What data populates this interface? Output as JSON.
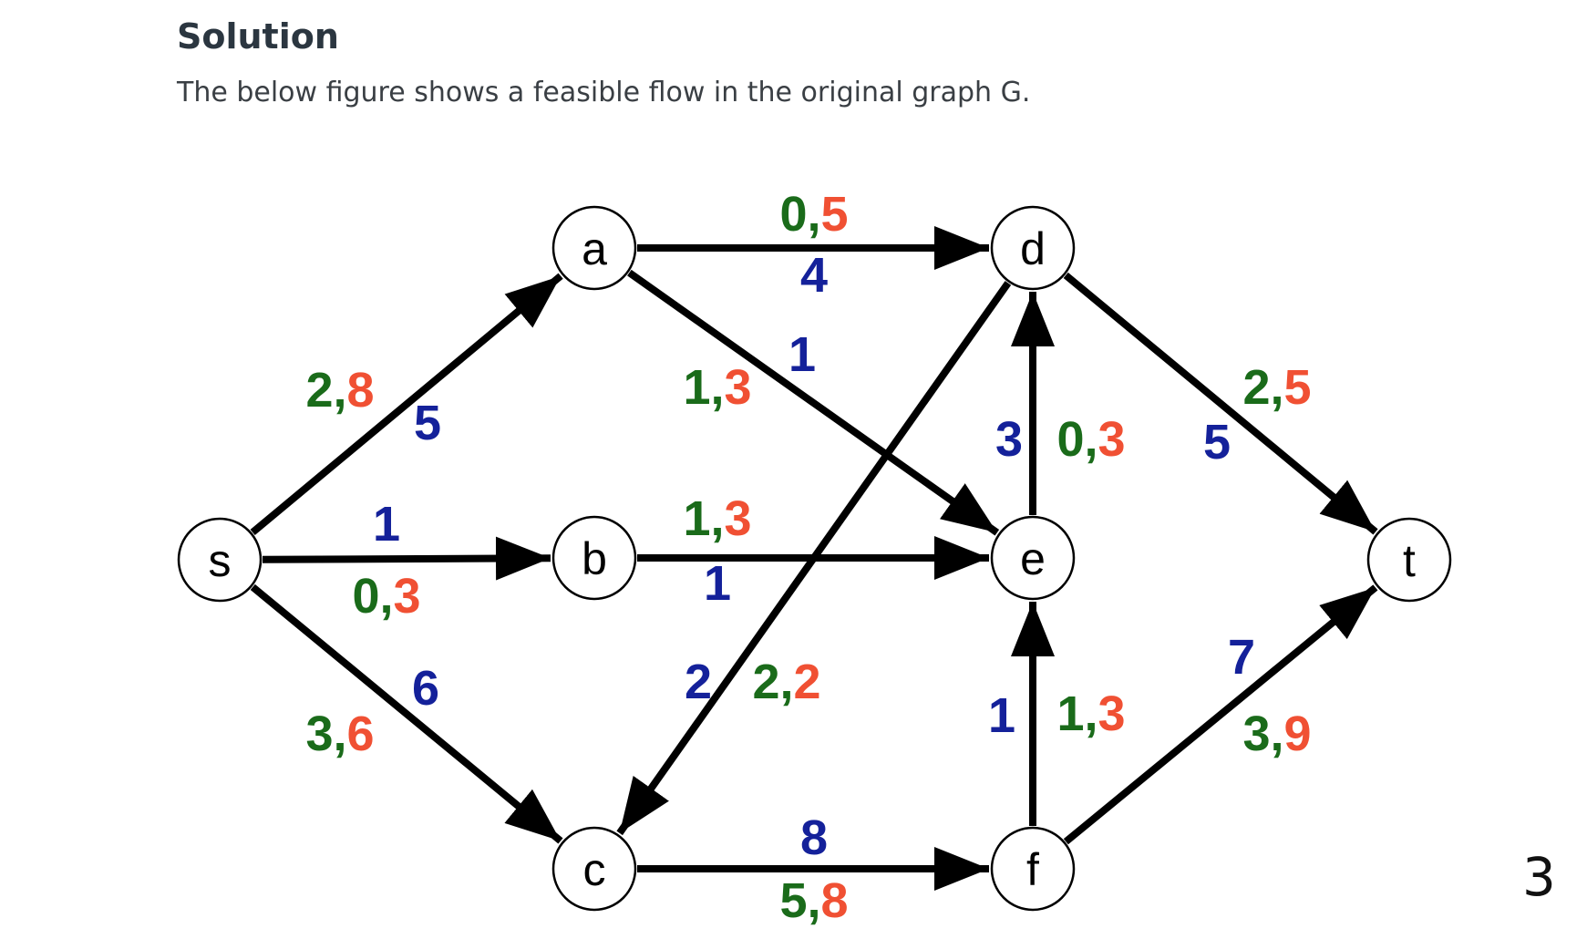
{
  "header": {
    "title": "Solution",
    "description": "The below figure shows a feasible flow in the original graph G."
  },
  "page_number": "3",
  "colors": {
    "flow": "#1a6b1a",
    "capacity": "#f05033",
    "residual": "#14219a"
  },
  "graph": {
    "nodes": [
      {
        "id": "s",
        "label": "s"
      },
      {
        "id": "a",
        "label": "a"
      },
      {
        "id": "b",
        "label": "b"
      },
      {
        "id": "c",
        "label": "c"
      },
      {
        "id": "d",
        "label": "d"
      },
      {
        "id": "e",
        "label": "e"
      },
      {
        "id": "f",
        "label": "f"
      },
      {
        "id": "t",
        "label": "t"
      }
    ],
    "edges": [
      {
        "id": "s-a",
        "from": "s",
        "to": "a",
        "flow": "2",
        "capacity": "8",
        "value": "5"
      },
      {
        "id": "s-b",
        "from": "s",
        "to": "b",
        "flow": "0",
        "capacity": "3",
        "value": "1"
      },
      {
        "id": "s-c",
        "from": "s",
        "to": "c",
        "flow": "3",
        "capacity": "6",
        "value": "6"
      },
      {
        "id": "a-d",
        "from": "a",
        "to": "d",
        "flow": "0",
        "capacity": "5",
        "value": "4"
      },
      {
        "id": "a-e",
        "from": "a",
        "to": "e",
        "flow": "1",
        "capacity": "3",
        "value": "1"
      },
      {
        "id": "b-e",
        "from": "b",
        "to": "e",
        "flow": "1",
        "capacity": "3",
        "value": "1"
      },
      {
        "id": "d-c",
        "from": "d",
        "to": "c",
        "flow": "2",
        "capacity": "2",
        "value": "2"
      },
      {
        "id": "c-f",
        "from": "c",
        "to": "f",
        "flow": "5",
        "capacity": "8",
        "value": "8"
      },
      {
        "id": "e-d",
        "from": "e",
        "to": "d",
        "flow": "0",
        "capacity": "3",
        "value": "3"
      },
      {
        "id": "f-e",
        "from": "f",
        "to": "e",
        "flow": "1",
        "capacity": "3",
        "value": "1"
      },
      {
        "id": "d-t",
        "from": "d",
        "to": "t",
        "flow": "2",
        "capacity": "5",
        "value": "5"
      },
      {
        "id": "f-t",
        "from": "f",
        "to": "t",
        "flow": "3",
        "capacity": "9",
        "value": "7"
      }
    ]
  }
}
